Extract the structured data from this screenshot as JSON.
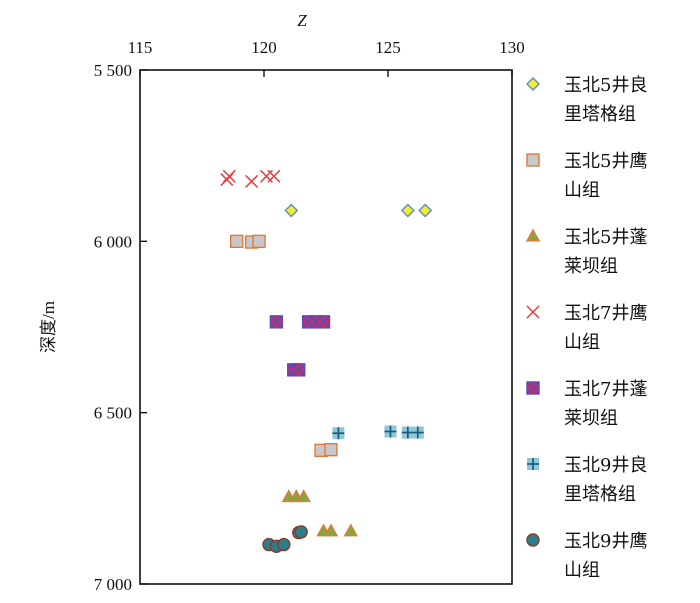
{
  "chart_data": {
    "type": "scatter",
    "xlabel": "Z",
    "ylabel": "深度/m",
    "xlim": [
      115,
      130
    ],
    "ylim": [
      5500,
      7000
    ],
    "y_inverted": true,
    "x_axis_position": "top",
    "xticks": [
      115,
      120,
      125,
      130
    ],
    "yticks": [
      5500,
      6000,
      6500,
      7000
    ],
    "xtick_labels": [
      "115",
      "120",
      "125",
      "130"
    ],
    "ytick_labels": [
      "5 500",
      "6 000",
      "6 500",
      "7 000"
    ],
    "grid": false,
    "legend_position": "right",
    "series": [
      {
        "name_lines": [
          "玉北5井良",
          "里塔格组"
        ],
        "marker": "diamond",
        "fill": "#f2ee2e",
        "stroke": "#5b8ccf",
        "points": [
          [
            121.1,
            5910
          ],
          [
            125.8,
            5910
          ],
          [
            126.5,
            5910
          ]
        ]
      },
      {
        "name_lines": [
          "玉北5井鹰",
          "山组"
        ],
        "marker": "square",
        "fill": "#c8c8c8",
        "stroke": "#e07a3c",
        "points": [
          [
            118.9,
            6000
          ],
          [
            119.5,
            6002
          ],
          [
            119.8,
            6000
          ],
          [
            122.3,
            6610
          ],
          [
            122.7,
            6608
          ]
        ]
      },
      {
        "name_lines": [
          "玉北5井蓬",
          "莱坝组"
        ],
        "marker": "triangle",
        "fill": "#82a83e",
        "stroke": "#e07a3c",
        "points": [
          [
            121.0,
            6745
          ],
          [
            121.3,
            6745
          ],
          [
            121.6,
            6745
          ],
          [
            122.4,
            6845
          ],
          [
            122.7,
            6845
          ],
          [
            123.5,
            6845
          ]
        ]
      },
      {
        "name_lines": [
          "玉北7井鹰",
          "山组"
        ],
        "marker": "cross",
        "fill": "none",
        "stroke": "#e33b3b",
        "points": [
          [
            118.5,
            5820
          ],
          [
            118.6,
            5810
          ],
          [
            119.5,
            5825
          ],
          [
            120.1,
            5810
          ],
          [
            120.4,
            5810
          ]
        ]
      },
      {
        "name_lines": [
          "玉北7井蓬",
          "莱坝组"
        ],
        "marker": "boxcross",
        "fill": "#c0306a",
        "stroke": "#5a4bb8",
        "points": [
          [
            120.5,
            6235
          ],
          [
            121.8,
            6235
          ],
          [
            122.1,
            6235
          ],
          [
            122.4,
            6235
          ],
          [
            121.2,
            6375
          ],
          [
            121.4,
            6375
          ]
        ]
      },
      {
        "name_lines": [
          "玉北9井良",
          "里塔格组"
        ],
        "marker": "plus",
        "fill": "#8ec8d8",
        "stroke": "#1a5a7a",
        "points": [
          [
            123.0,
            6560
          ],
          [
            125.1,
            6555
          ],
          [
            125.8,
            6558
          ],
          [
            126.2,
            6558
          ]
        ]
      },
      {
        "name_lines": [
          "玉北9井鹰",
          "山组"
        ],
        "marker": "circle",
        "fill": "#2e7d8c",
        "stroke": "#8a3a2a",
        "points": [
          [
            120.2,
            6885
          ],
          [
            120.5,
            6890
          ],
          [
            120.8,
            6885
          ],
          [
            121.4,
            6850
          ],
          [
            121.5,
            6848
          ]
        ]
      }
    ]
  }
}
